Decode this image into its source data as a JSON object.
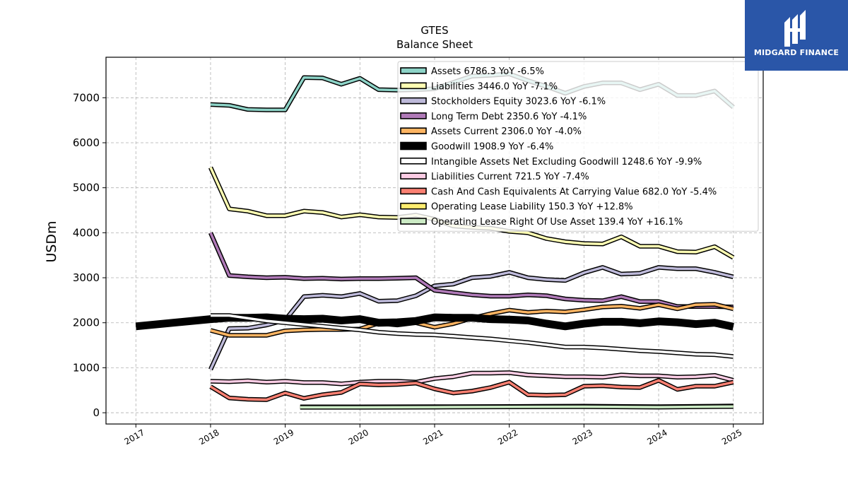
{
  "brand": {
    "name": "MIDGARD FINANCE",
    "accent": "#2a56a8"
  },
  "chart_data": {
    "type": "line",
    "title": "GTES",
    "subtitle": "Balance  Sheet",
    "ylabel": "USDm",
    "xlabel": "",
    "xlim": [
      2016.6,
      2025.4
    ],
    "ylim": [
      -250,
      7900
    ],
    "x_ticks": [
      2017,
      2018,
      2019,
      2020,
      2021,
      2022,
      2023,
      2024,
      2025
    ],
    "y_ticks": [
      0,
      1000,
      2000,
      3000,
      4000,
      5000,
      6000,
      7000
    ],
    "grid": true,
    "legend_position": "top-right",
    "series": [
      {
        "name": "Assets",
        "legend": "Assets  6786.3 YoY -6.5%",
        "color": "#8dd3c7",
        "width": 3.5,
        "points": [
          [
            2018,
            6850
          ],
          [
            2018.25,
            6830
          ],
          [
            2018.5,
            6740
          ],
          [
            2018.75,
            6730
          ],
          [
            2019,
            6730
          ],
          [
            2019.25,
            7450
          ],
          [
            2019.5,
            7440
          ],
          [
            2019.75,
            7300
          ],
          [
            2020,
            7430
          ],
          [
            2020.25,
            7180
          ],
          [
            2020.5,
            7170
          ],
          [
            2020.75,
            7180
          ],
          [
            2021,
            7200
          ],
          [
            2021.25,
            7340
          ],
          [
            2021.5,
            7480
          ],
          [
            2021.75,
            7500
          ],
          [
            2022,
            7530
          ],
          [
            2022.25,
            7380
          ],
          [
            2022.5,
            7250
          ],
          [
            2022.75,
            7100
          ],
          [
            2023,
            7250
          ],
          [
            2023.25,
            7330
          ],
          [
            2023.5,
            7330
          ],
          [
            2023.75,
            7180
          ],
          [
            2024,
            7300
          ],
          [
            2024.25,
            7050
          ],
          [
            2024.5,
            7050
          ],
          [
            2024.75,
            7150
          ],
          [
            2025,
            6790
          ]
        ]
      },
      {
        "name": "Liabilities",
        "legend": "Liabilities  3446.0 YoY -7.1%",
        "color": "#ffffb3",
        "width": 3.5,
        "points": [
          [
            2018,
            5450
          ],
          [
            2018.25,
            4530
          ],
          [
            2018.5,
            4480
          ],
          [
            2018.75,
            4380
          ],
          [
            2019,
            4380
          ],
          [
            2019.25,
            4480
          ],
          [
            2019.5,
            4450
          ],
          [
            2019.75,
            4350
          ],
          [
            2020,
            4400
          ],
          [
            2020.25,
            4350
          ],
          [
            2020.5,
            4340
          ],
          [
            2020.75,
            4390
          ],
          [
            2021,
            4300
          ],
          [
            2021.25,
            4150
          ],
          [
            2021.5,
            4120
          ],
          [
            2021.75,
            4100
          ],
          [
            2022,
            4030
          ],
          [
            2022.25,
            4000
          ],
          [
            2022.5,
            3870
          ],
          [
            2022.75,
            3800
          ],
          [
            2023,
            3760
          ],
          [
            2023.25,
            3750
          ],
          [
            2023.5,
            3910
          ],
          [
            2023.75,
            3700
          ],
          [
            2024,
            3700
          ],
          [
            2024.25,
            3580
          ],
          [
            2024.5,
            3570
          ],
          [
            2024.75,
            3690
          ],
          [
            2025,
            3450
          ]
        ]
      },
      {
        "name": "Stockholders Equity",
        "legend": "Stockholders Equity  3023.6 YoY -6.1%",
        "color": "#bebada",
        "width": 3.5,
        "points": [
          [
            2018,
            960
          ],
          [
            2018.25,
            1870
          ],
          [
            2018.5,
            1880
          ],
          [
            2018.75,
            1950
          ],
          [
            2019,
            2060
          ],
          [
            2019.25,
            2580
          ],
          [
            2019.5,
            2610
          ],
          [
            2019.75,
            2580
          ],
          [
            2020,
            2650
          ],
          [
            2020.25,
            2480
          ],
          [
            2020.5,
            2490
          ],
          [
            2020.75,
            2600
          ],
          [
            2021,
            2820
          ],
          [
            2021.25,
            2860
          ],
          [
            2021.5,
            3000
          ],
          [
            2021.75,
            3030
          ],
          [
            2022,
            3120
          ],
          [
            2022.25,
            3000
          ],
          [
            2022.5,
            2960
          ],
          [
            2022.75,
            2940
          ],
          [
            2023,
            3110
          ],
          [
            2023.25,
            3230
          ],
          [
            2023.5,
            3080
          ],
          [
            2023.75,
            3100
          ],
          [
            2024,
            3230
          ],
          [
            2024.25,
            3200
          ],
          [
            2024.5,
            3200
          ],
          [
            2024.75,
            3120
          ],
          [
            2025,
            3020
          ]
        ]
      },
      {
        "name": "Long Term Debt",
        "legend": "Long Term Debt  2350.6 YoY -4.1%",
        "color": "#b07ab8",
        "width": 3.5,
        "points": [
          [
            2018,
            4000
          ],
          [
            2018.25,
            3050
          ],
          [
            2018.5,
            3020
          ],
          [
            2018.75,
            3000
          ],
          [
            2019,
            3010
          ],
          [
            2019.25,
            2980
          ],
          [
            2019.5,
            2990
          ],
          [
            2019.75,
            2970
          ],
          [
            2020,
            2980
          ],
          [
            2020.25,
            2980
          ],
          [
            2020.5,
            2990
          ],
          [
            2020.75,
            3000
          ],
          [
            2021,
            2720
          ],
          [
            2021.25,
            2670
          ],
          [
            2021.5,
            2620
          ],
          [
            2021.75,
            2590
          ],
          [
            2022,
            2590
          ],
          [
            2022.25,
            2620
          ],
          [
            2022.5,
            2600
          ],
          [
            2022.75,
            2530
          ],
          [
            2023,
            2500
          ],
          [
            2023.25,
            2490
          ],
          [
            2023.5,
            2580
          ],
          [
            2023.75,
            2470
          ],
          [
            2024,
            2470
          ],
          [
            2024.25,
            2360
          ],
          [
            2024.5,
            2360
          ],
          [
            2024.75,
            2360
          ],
          [
            2025,
            2350
          ]
        ]
      },
      {
        "name": "Assets Current",
        "legend": "Assets Current  2306.0 YoY -4.0%",
        "color": "#fdb462",
        "width": 3.5,
        "points": [
          [
            2018,
            1830
          ],
          [
            2018.25,
            1720
          ],
          [
            2018.5,
            1720
          ],
          [
            2018.75,
            1720
          ],
          [
            2019,
            1820
          ],
          [
            2019.25,
            1840
          ],
          [
            2019.5,
            1850
          ],
          [
            2019.75,
            1850
          ],
          [
            2020,
            1860
          ],
          [
            2020.25,
            1990
          ],
          [
            2020.5,
            1950
          ],
          [
            2020.75,
            2000
          ],
          [
            2021,
            1900
          ],
          [
            2021.25,
            1980
          ],
          [
            2021.5,
            2100
          ],
          [
            2021.75,
            2200
          ],
          [
            2022,
            2280
          ],
          [
            2022.25,
            2230
          ],
          [
            2022.5,
            2260
          ],
          [
            2022.75,
            2240
          ],
          [
            2023,
            2290
          ],
          [
            2023.25,
            2350
          ],
          [
            2023.5,
            2370
          ],
          [
            2023.75,
            2320
          ],
          [
            2024,
            2400
          ],
          [
            2024.25,
            2310
          ],
          [
            2024.5,
            2400
          ],
          [
            2024.75,
            2410
          ],
          [
            2025,
            2310
          ]
        ]
      },
      {
        "name": "Goodwill",
        "legend": "Goodwill  1908.9 YoY -6.4%",
        "color": "#000000",
        "width": 8,
        "points": [
          [
            2017,
            1920
          ],
          [
            2018,
            2080
          ],
          [
            2018.25,
            2110
          ],
          [
            2018.5,
            2110
          ],
          [
            2018.75,
            2120
          ],
          [
            2019,
            2090
          ],
          [
            2019.25,
            2080
          ],
          [
            2019.5,
            2090
          ],
          [
            2019.75,
            2050
          ],
          [
            2020,
            2080
          ],
          [
            2020.25,
            2000
          ],
          [
            2020.5,
            2010
          ],
          [
            2020.75,
            2040
          ],
          [
            2021,
            2120
          ],
          [
            2021.25,
            2110
          ],
          [
            2021.5,
            2110
          ],
          [
            2021.75,
            2080
          ],
          [
            2022,
            2070
          ],
          [
            2022.25,
            2050
          ],
          [
            2022.5,
            1980
          ],
          [
            2022.75,
            1920
          ],
          [
            2023,
            1980
          ],
          [
            2023.25,
            2020
          ],
          [
            2023.5,
            2020
          ],
          [
            2023.75,
            1990
          ],
          [
            2024,
            2030
          ],
          [
            2024.25,
            2010
          ],
          [
            2024.5,
            1970
          ],
          [
            2024.75,
            2000
          ],
          [
            2025,
            1910
          ]
        ]
      },
      {
        "name": "Intangible Assets Net Excluding Goodwill",
        "legend": "Intangible Assets Net Excluding Goodwill  1248.6 YoY -9.9%",
        "color": "#ffffff",
        "width": 3.5,
        "points": [
          [
            2018,
            2160
          ],
          [
            2018.25,
            2160
          ],
          [
            2018.5,
            2100
          ],
          [
            2018.75,
            2040
          ],
          [
            2019,
            2000
          ],
          [
            2019.25,
            1960
          ],
          [
            2019.5,
            1920
          ],
          [
            2019.75,
            1880
          ],
          [
            2020,
            1840
          ],
          [
            2020.25,
            1790
          ],
          [
            2020.5,
            1760
          ],
          [
            2020.75,
            1740
          ],
          [
            2021,
            1730
          ],
          [
            2021.25,
            1700
          ],
          [
            2021.5,
            1670
          ],
          [
            2021.75,
            1640
          ],
          [
            2022,
            1600
          ],
          [
            2022.25,
            1560
          ],
          [
            2022.5,
            1510
          ],
          [
            2022.75,
            1460
          ],
          [
            2023,
            1460
          ],
          [
            2023.25,
            1440
          ],
          [
            2023.5,
            1410
          ],
          [
            2023.75,
            1380
          ],
          [
            2024,
            1360
          ],
          [
            2024.25,
            1330
          ],
          [
            2024.5,
            1300
          ],
          [
            2024.75,
            1290
          ],
          [
            2025,
            1250
          ]
        ]
      },
      {
        "name": "Liabilities Current",
        "legend": "Liabilities Current  721.5 YoY -7.4%",
        "color": "#fccde5",
        "width": 3.5,
        "points": [
          [
            2018,
            700
          ],
          [
            2018.25,
            690
          ],
          [
            2018.5,
            710
          ],
          [
            2018.75,
            680
          ],
          [
            2019,
            700
          ],
          [
            2019.25,
            670
          ],
          [
            2019.5,
            670
          ],
          [
            2019.75,
            640
          ],
          [
            2020,
            680
          ],
          [
            2020.25,
            700
          ],
          [
            2020.5,
            700
          ],
          [
            2020.75,
            680
          ],
          [
            2021,
            760
          ],
          [
            2021.25,
            800
          ],
          [
            2021.5,
            880
          ],
          [
            2021.75,
            880
          ],
          [
            2022,
            890
          ],
          [
            2022.25,
            840
          ],
          [
            2022.5,
            820
          ],
          [
            2022.75,
            800
          ],
          [
            2023,
            800
          ],
          [
            2023.25,
            790
          ],
          [
            2023.5,
            840
          ],
          [
            2023.75,
            820
          ],
          [
            2024,
            820
          ],
          [
            2024.25,
            790
          ],
          [
            2024.5,
            800
          ],
          [
            2024.75,
            830
          ],
          [
            2025,
            720
          ]
        ]
      },
      {
        "name": "Cash And Cash Equivalents At Carrying Value",
        "legend": "Cash And Cash Equivalents At Carrying Value  682.0 YoY -5.4%",
        "color": "#fb8072",
        "width": 3.5,
        "points": [
          [
            2018,
            580
          ],
          [
            2018.25,
            330
          ],
          [
            2018.5,
            300
          ],
          [
            2018.75,
            290
          ],
          [
            2019,
            440
          ],
          [
            2019.25,
            320
          ],
          [
            2019.5,
            400
          ],
          [
            2019.75,
            450
          ],
          [
            2020,
            640
          ],
          [
            2020.25,
            620
          ],
          [
            2020.5,
            630
          ],
          [
            2020.75,
            660
          ],
          [
            2021,
            530
          ],
          [
            2021.25,
            440
          ],
          [
            2021.5,
            480
          ],
          [
            2021.75,
            560
          ],
          [
            2022,
            680
          ],
          [
            2022.25,
            400
          ],
          [
            2022.5,
            390
          ],
          [
            2022.75,
            400
          ],
          [
            2023,
            590
          ],
          [
            2023.25,
            600
          ],
          [
            2023.5,
            570
          ],
          [
            2023.75,
            560
          ],
          [
            2024,
            720
          ],
          [
            2024.25,
            520
          ],
          [
            2024.5,
            590
          ],
          [
            2024.75,
            590
          ],
          [
            2025,
            680
          ]
        ]
      },
      {
        "name": "Operating Lease Liability",
        "legend": "Operating Lease Liability  150.3 YoY +12.8%",
        "color": "#ffed6f",
        "width": 3.5,
        "points": [
          [
            2019.2,
            130
          ],
          [
            2020,
            130
          ],
          [
            2021,
            135
          ],
          [
            2022,
            140
          ],
          [
            2023,
            145
          ],
          [
            2024,
            135
          ],
          [
            2025,
            150
          ]
        ]
      },
      {
        "name": "Operating Lease Right Of Use Asset",
        "legend": "Operating Lease Right Of Use Asset  139.4 YoY +16.1%",
        "color": "#ccebc5",
        "width": 3.5,
        "points": [
          [
            2019.2,
            120
          ],
          [
            2020,
            120
          ],
          [
            2021,
            125
          ],
          [
            2022,
            130
          ],
          [
            2023,
            135
          ],
          [
            2024,
            125
          ],
          [
            2025,
            140
          ]
        ]
      }
    ]
  }
}
